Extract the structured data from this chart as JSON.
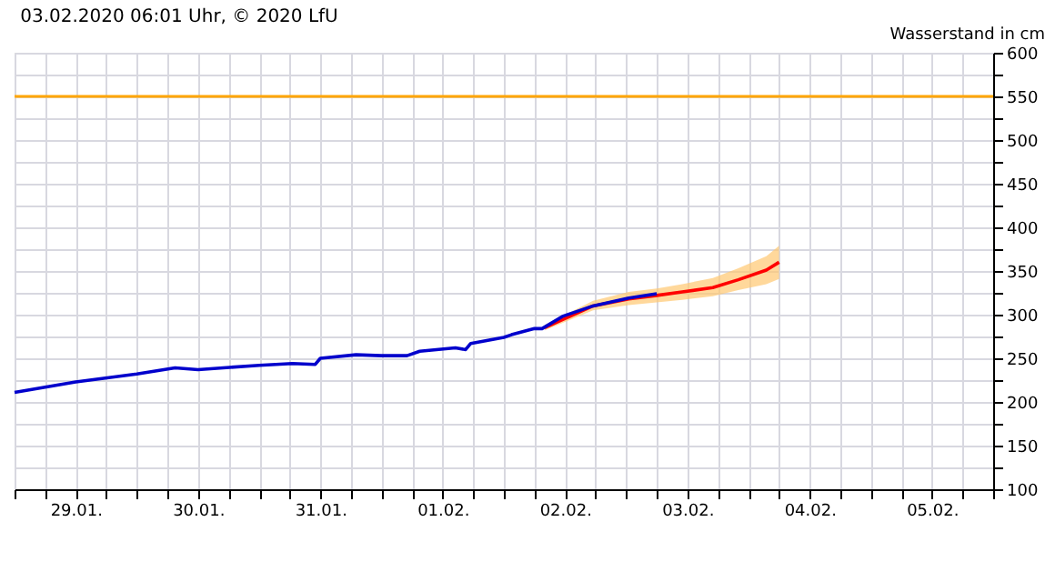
{
  "chart_data": {
    "type": "line",
    "title": "03.02.2020 06:01 Uhr, © 2020 LfU",
    "ylabel": "Wasserstand in cm",
    "series": [
      {
        "color": "#0000cc",
        "x": [
          "2020-01-29T00:00",
          "2020-01-29T12:00",
          "2020-01-30T00:00",
          "2020-01-30T07:30",
          "2020-01-30T12:00",
          "2020-01-31T00:00",
          "2020-01-31T06:30",
          "2020-01-31T11:00",
          "2020-01-31T12:00",
          "2020-01-31T19:00",
          "2020-02-01T00:00",
          "2020-02-01T05:00",
          "2020-02-01T07:30",
          "2020-02-01T14:30",
          "2020-02-01T16:30",
          "2020-02-01T17:30",
          "2020-02-02T00:00",
          "2020-02-02T01:30",
          "2020-02-02T06:00",
          "2020-02-02T07:30",
          "2020-02-02T11:30",
          "2020-02-02T17:30",
          "2020-02-03T00:30",
          "2020-02-03T06:00"
        ],
        "values": [
          211,
          223,
          232,
          239,
          237,
          242,
          244,
          243,
          250,
          254,
          253,
          253,
          258,
          262,
          260,
          267,
          274,
          277,
          284,
          284,
          298,
          310,
          319,
          324
        ]
      },
      {
        "color": "#ff0000",
        "x": [
          "2020-02-02T08:00",
          "2020-02-02T17:30",
          "2020-02-03T00:30",
          "2020-02-03T06:00",
          "2020-02-03T11:00",
          "2020-02-03T17:00",
          "2020-02-03T22:00",
          "2020-02-04T03:30",
          "2020-02-04T06:00"
        ],
        "values": [
          285,
          310,
          318,
          322,
          326,
          331,
          340,
          351,
          360
        ],
        "lower": [
          282,
          305,
          311,
          314,
          317,
          321,
          328,
          335,
          341
        ],
        "upper": [
          288,
          316,
          326,
          330,
          335,
          342,
          353,
          367,
          379
        ]
      }
    ],
    "xlim": [
      "2020-01-29T00:00",
      "2020-02-06T00:00"
    ],
    "xticks": [
      {
        "value": "2020-01-29T00:00",
        "label": null
      },
      {
        "value": "2020-01-29T06:00",
        "label": null
      },
      {
        "value": "2020-01-29T12:00",
        "label": "29.01."
      },
      {
        "value": "2020-01-29T18:00",
        "label": null
      },
      {
        "value": "2020-01-30T00:00",
        "label": null
      },
      {
        "value": "2020-01-30T06:00",
        "label": null
      },
      {
        "value": "2020-01-30T12:00",
        "label": "30.01."
      },
      {
        "value": "2020-01-30T18:00",
        "label": null
      },
      {
        "value": "2020-01-31T00:00",
        "label": null
      },
      {
        "value": "2020-01-31T06:00",
        "label": null
      },
      {
        "value": "2020-01-31T12:00",
        "label": "31.01."
      },
      {
        "value": "2020-01-31T18:00",
        "label": null
      },
      {
        "value": "2020-02-01T00:00",
        "label": null
      },
      {
        "value": "2020-02-01T06:00",
        "label": null
      },
      {
        "value": "2020-02-01T12:00",
        "label": "01.02."
      },
      {
        "value": "2020-02-01T18:00",
        "label": null
      },
      {
        "value": "2020-02-02T00:00",
        "label": null
      },
      {
        "value": "2020-02-02T06:00",
        "label": null
      },
      {
        "value": "2020-02-02T12:00",
        "label": "02.02."
      },
      {
        "value": "2020-02-02T18:00",
        "label": null
      },
      {
        "value": "2020-02-03T00:00",
        "label": null
      },
      {
        "value": "2020-02-03T06:00",
        "label": null
      },
      {
        "value": "2020-02-03T12:00",
        "label": "03.02."
      },
      {
        "value": "2020-02-03T18:00",
        "label": null
      },
      {
        "value": "2020-02-04T00:00",
        "label": null
      },
      {
        "value": "2020-02-04T06:00",
        "label": null
      },
      {
        "value": "2020-02-04T12:00",
        "label": "04.02."
      },
      {
        "value": "2020-02-04T18:00",
        "label": null
      },
      {
        "value": "2020-02-05T00:00",
        "label": null
      },
      {
        "value": "2020-02-05T06:00",
        "label": null
      },
      {
        "value": "2020-02-05T12:00",
        "label": "05.02."
      },
      {
        "value": "2020-02-05T18:00",
        "label": null
      },
      {
        "value": "2020-02-06T00:00",
        "label": null
      }
    ],
    "ylim": [
      100,
      600
    ],
    "yticks": [
      100,
      {
        "value": 125,
        "label": null
      },
      150,
      {
        "value": 175,
        "label": null
      },
      200,
      {
        "value": 225,
        "label": null
      },
      250,
      {
        "value": 275,
        "label": null
      },
      300,
      {
        "value": 325,
        "label": null
      },
      350,
      {
        "value": 375,
        "label": null
      },
      400,
      {
        "value": 425,
        "label": null
      },
      450,
      {
        "value": 475,
        "label": null
      },
      500,
      {
        "value": 525,
        "label": null
      },
      550,
      {
        "value": 575,
        "label": null
      },
      600
    ],
    "ref_lines": [
      {
        "axis": "y",
        "value": 550,
        "color": "#ffa500"
      }
    ],
    "grid": true,
    "marker": "none",
    "line_style": "solid"
  }
}
